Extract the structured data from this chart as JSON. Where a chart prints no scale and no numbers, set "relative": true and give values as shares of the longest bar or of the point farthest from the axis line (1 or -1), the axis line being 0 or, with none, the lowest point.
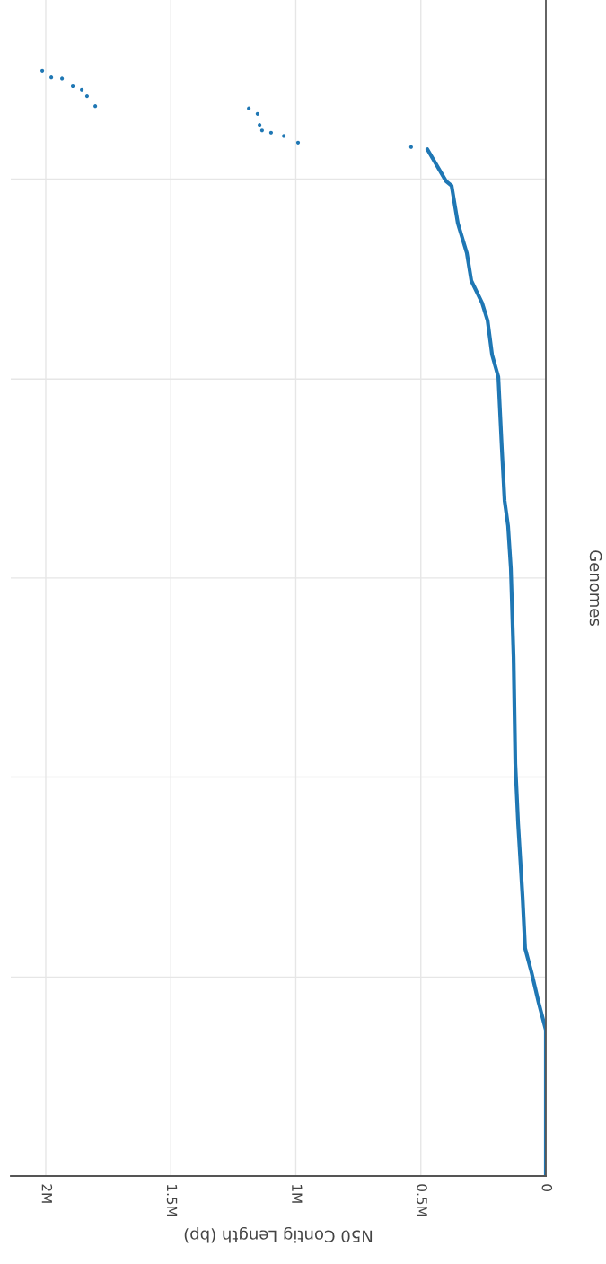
{
  "chart_data": {
    "type": "line",
    "xlabel": "N50 Contig Length (bp)",
    "ylabel": "Genomes",
    "relative": true,
    "xlim": [
      2140000,
      0
    ],
    "xticks": [
      {
        "value": 0,
        "label": "0"
      },
      {
        "value": 500000,
        "label": "0.5M"
      },
      {
        "value": 1000000,
        "label": "1M"
      },
      {
        "value": 1500000,
        "label": "1.5M"
      },
      {
        "value": 2000000,
        "label": "2M"
      }
    ],
    "grid": "x",
    "ref_lines": [
      {
        "axis": "y",
        "value": 0.18,
        "color": "#e6e6e6"
      },
      {
        "axis": "y",
        "value": 0.361,
        "color": "#e6e6e6"
      },
      {
        "axis": "y",
        "value": 0.541,
        "color": "#e6e6e6"
      },
      {
        "axis": "y",
        "value": 0.721,
        "color": "#e6e6e6"
      },
      {
        "axis": "y",
        "value": 0.902,
        "color": "#e6e6e6"
      }
    ],
    "series": [
      {
        "color": "#1f77b4",
        "x": [
          0,
          0,
          29000,
          57000,
          83000,
          93000,
          111000,
          122000,
          129000,
          140000,
          151000,
          165000,
          176000,
          190000,
          215000,
          233000,
          255000,
          298000,
          316000,
          352000,
          377000,
          399000,
          474000
        ],
        "values": [
          0,
          0.132,
          0.157,
          0.184,
          0.206,
          0.252,
          0.319,
          0.373,
          0.469,
          0.55,
          0.588,
          0.611,
          0.658,
          0.723,
          0.743,
          0.774,
          0.79,
          0.81,
          0.835,
          0.862,
          0.896,
          0.9,
          0.929
        ]
      },
      {
        "type": "scatter",
        "color": "#1f77b4",
        "marker": "circle",
        "x": [
          539000,
          991000,
          1048000,
          1099000,
          1135000,
          1145000,
          1153000,
          1188000,
          1802000,
          1835000,
          1856000,
          1892000,
          1935000,
          1978000,
          2014000
        ],
        "values": [
          0.931,
          0.935,
          0.941,
          0.944,
          0.946,
          0.951,
          0.961,
          0.966,
          0.968,
          0.977,
          0.983,
          0.986,
          0.993,
          0.994,
          1
        ]
      }
    ]
  }
}
